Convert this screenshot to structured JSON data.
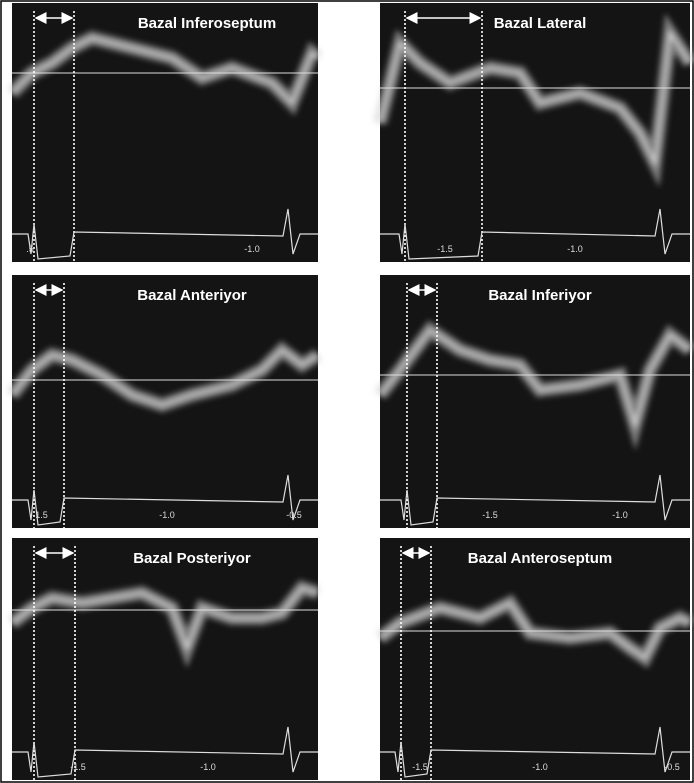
{
  "panels": [
    {
      "title": "Bazal Inferoseptum",
      "scale_labels": [
        ".5",
        "-1.0"
      ]
    },
    {
      "title": "Bazal Lateral",
      "scale_labels": [
        "-1.5",
        "-1.0"
      ]
    },
    {
      "title": "Bazal Anteriyor",
      "scale_labels": [
        "-1.5",
        "-1.0",
        "-0.5"
      ]
    },
    {
      "title": "Bazal Inferiyor",
      "scale_labels": [
        "-1.5",
        "-1.0"
      ]
    },
    {
      "title": "Bazal Posteriyor",
      "scale_labels": [
        "-1.5",
        "-1.0"
      ]
    },
    {
      "title": "Bazal Anteroseptum",
      "scale_labels": [
        "-1.5",
        "-1.0",
        "-0.5"
      ]
    }
  ]
}
